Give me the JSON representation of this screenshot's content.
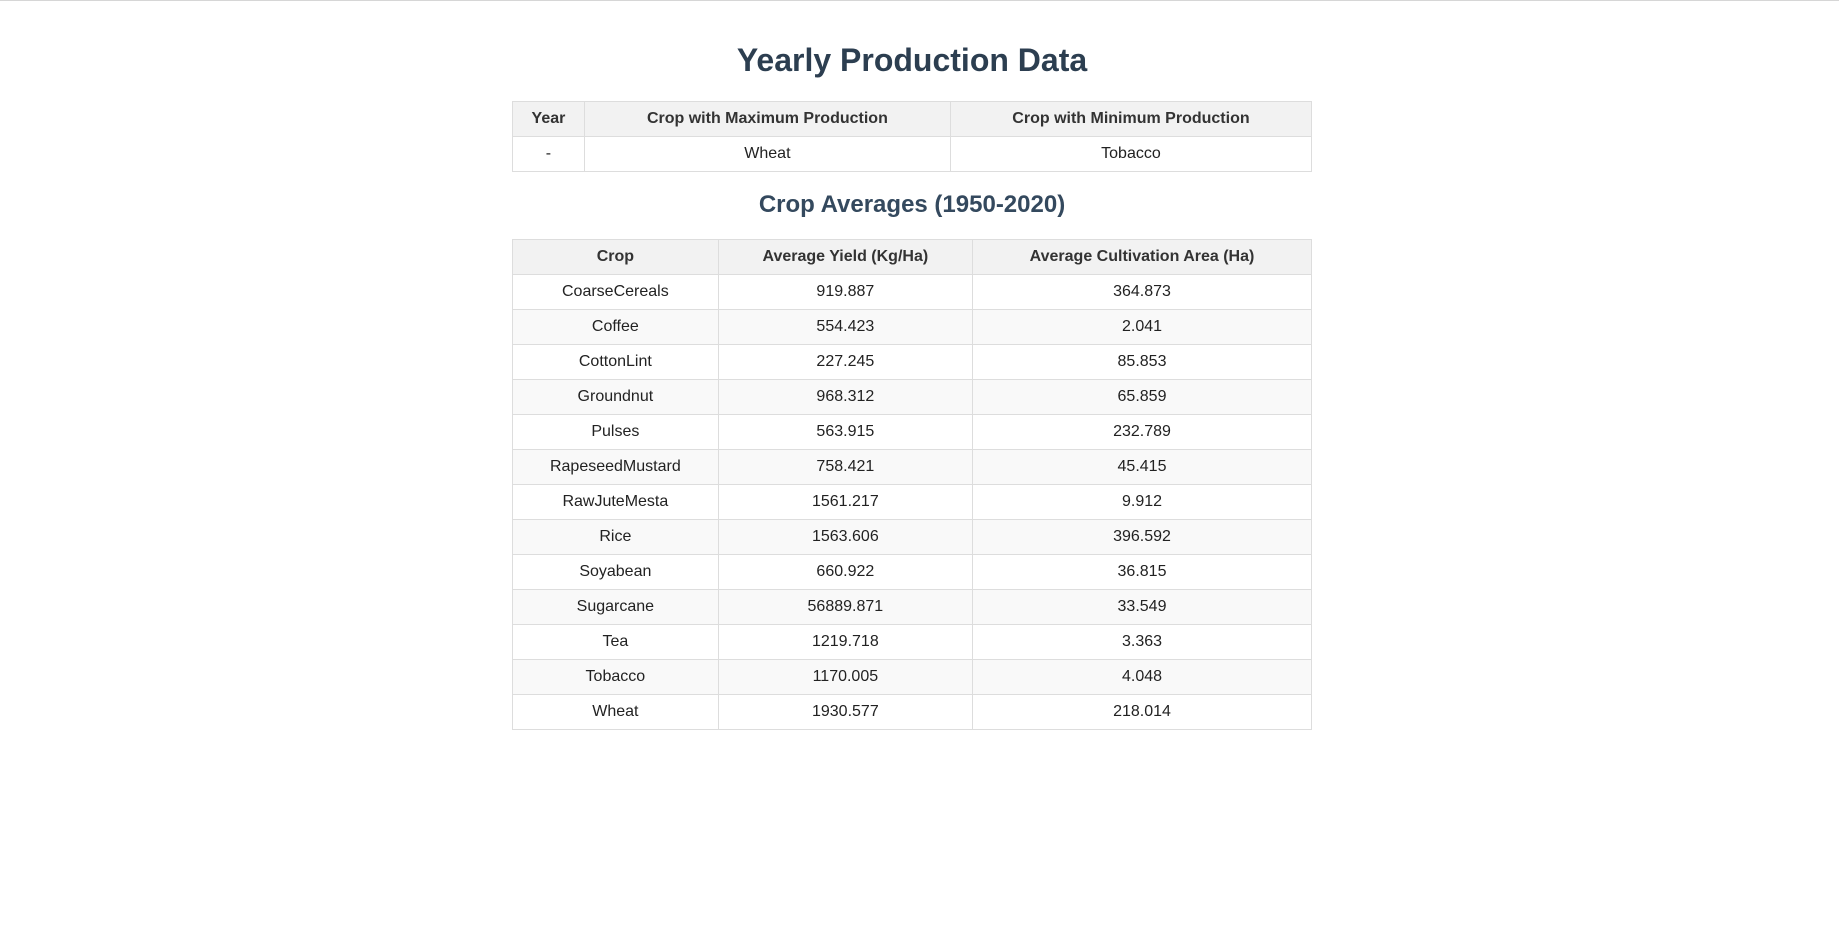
{
  "page": {
    "title": "Yearly Production Data",
    "averages_title": "Crop Averages (1950-2020)"
  },
  "yearly_table": {
    "headers": [
      "Year",
      "Crop with Maximum Production",
      "Crop with Minimum Production"
    ],
    "rows": [
      [
        "-",
        "Wheat",
        "Tobacco"
      ]
    ]
  },
  "averages_table": {
    "headers": [
      "Crop",
      "Average Yield (Kg/Ha)",
      "Average Cultivation Area (Ha)"
    ],
    "rows": [
      [
        "CoarseCereals",
        "919.887",
        "364.873"
      ],
      [
        "Coffee",
        "554.423",
        "2.041"
      ],
      [
        "CottonLint",
        "227.245",
        "85.853"
      ],
      [
        "Groundnut",
        "968.312",
        "65.859"
      ],
      [
        "Pulses",
        "563.915",
        "232.789"
      ],
      [
        "RapeseedMustard",
        "758.421",
        "45.415"
      ],
      [
        "RawJuteMesta",
        "1561.217",
        "9.912"
      ],
      [
        "Rice",
        "1563.606",
        "396.592"
      ],
      [
        "Soyabean",
        "660.922",
        "36.815"
      ],
      [
        "Sugarcane",
        "56889.871",
        "33.549"
      ],
      [
        "Tea",
        "1219.718",
        "3.363"
      ],
      [
        "Tobacco",
        "1170.005",
        "4.048"
      ],
      [
        "Wheat",
        "1930.577",
        "218.014"
      ]
    ]
  }
}
